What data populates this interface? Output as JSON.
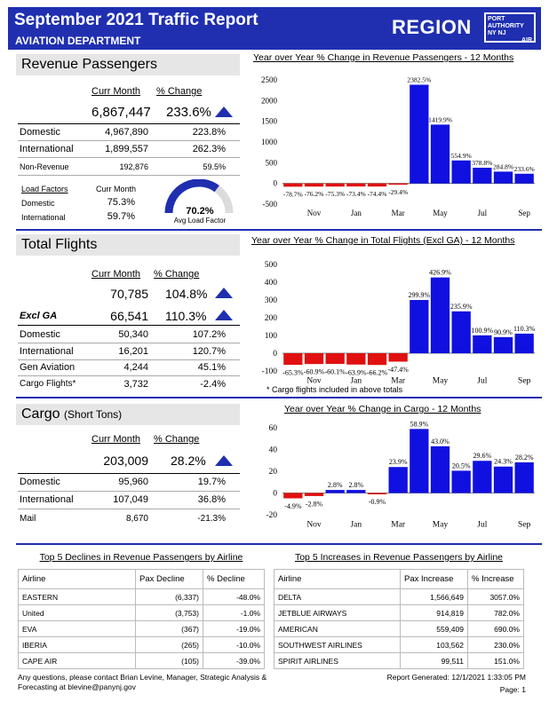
{
  "header": {
    "title": "September 2021 Traffic Report",
    "subtitle": "AVIATION DEPARTMENT",
    "region": "REGION",
    "logo_line1": "PORT",
    "logo_line2": "AUTHORITY",
    "logo_line3": "NY NJ",
    "logo_line4": "AIR"
  },
  "passengers": {
    "title": "Revenue Passengers",
    "col_curr": "Curr Month",
    "col_change": "% Change",
    "total_value": "6,867,447",
    "total_change": "233.6%",
    "rows": [
      {
        "label": "Domestic",
        "value": "4,967,890",
        "change": "223.8%"
      },
      {
        "label": "International",
        "value": "1,899,557",
        "change": "262.3%"
      },
      {
        "label": "Non-Revenue",
        "value": "192,876",
        "change": "59.5%"
      }
    ],
    "lf_title": "Load Factors",
    "lf_col": "Curr Month",
    "lf_rows": [
      {
        "label": "Domestic",
        "value": "75.3%"
      },
      {
        "label": "International",
        "value": "59.7%"
      }
    ],
    "gauge_value": "70.2%",
    "gauge_label": "Avg Load Factor",
    "gauge_fraction": 0.702
  },
  "flights": {
    "title": "Total Flights",
    "col_curr": "Curr Month",
    "col_change": "% Change",
    "total_value": "70,785",
    "total_change": "104.8%",
    "excl_label": "Excl GA",
    "excl_value": "66,541",
    "excl_change": "110.3%",
    "rows": [
      {
        "label": "Domestic",
        "value": "50,340",
        "change": "107.2%"
      },
      {
        "label": "International",
        "value": "16,201",
        "change": "120.7%"
      },
      {
        "label": "Gen Aviation",
        "value": "4,244",
        "change": "45.1%"
      },
      {
        "label": "Cargo Flights*",
        "value": "3,732",
        "change": "-2.4%"
      }
    ],
    "note": "* Cargo flights included in above totals"
  },
  "cargo": {
    "title": "Cargo",
    "title_small": "(Short Tons)",
    "col_curr": "Curr Month",
    "col_change": "% Change",
    "total_value": "203,009",
    "total_change": "28.2%",
    "rows": [
      {
        "label": "Domestic",
        "value": "95,960",
        "change": "19.7%"
      },
      {
        "label": "International",
        "value": "107,049",
        "change": "36.8%"
      },
      {
        "label": "Mail",
        "value": "8,670",
        "change": "-21.3%"
      }
    ]
  },
  "chart_data": [
    {
      "type": "bar",
      "title": "Year over Year % Change in Revenue Passengers - 12 Months",
      "categories": [
        "Oct",
        "Nov",
        "Dec",
        "Jan",
        "Feb",
        "Mar",
        "Apr",
        "May",
        "Jun",
        "Jul",
        "Aug",
        "Sep"
      ],
      "x_tick_labels": [
        "",
        "Nov",
        "",
        "Jan",
        "",
        "Mar",
        "",
        "May",
        "",
        "Jul",
        "",
        "Sep"
      ],
      "values": [
        -78.7,
        -76.2,
        -75.3,
        -73.4,
        -74.4,
        -29.4,
        2382.5,
        1419.9,
        554.9,
        378.8,
        284.8,
        233.6
      ],
      "labels": [
        "-78.7%",
        "-76.2%",
        "-75.3%",
        "-73.4%",
        "-74.4%",
        "-29.4%",
        "2382.5%",
        "1419.9%",
        "554.9%",
        "378.8%",
        "284.8%",
        "233.6%"
      ],
      "ylim": [
        -500,
        2500
      ],
      "yticks": [
        -500,
        0,
        500,
        1000,
        1500,
        2000,
        2500
      ],
      "positive_color": "#1010e0",
      "negative_color": "#e01010"
    },
    {
      "type": "bar",
      "title": "Year over Year % Change in Total Flights (Excl GA) - 12 Months",
      "categories": [
        "Oct",
        "Nov",
        "Dec",
        "Jan",
        "Feb",
        "Mar",
        "Apr",
        "May",
        "Jun",
        "Jul",
        "Aug",
        "Sep"
      ],
      "x_tick_labels": [
        "",
        "Nov",
        "",
        "Jan",
        "",
        "Mar",
        "",
        "May",
        "",
        "Jul",
        "",
        "Sep"
      ],
      "values": [
        -65.3,
        -60.9,
        -60.1,
        -63.9,
        -66.2,
        -47.4,
        299.9,
        426.9,
        235.9,
        100.9,
        90.9,
        110.3
      ],
      "labels": [
        "-65.3%",
        "-60.9%",
        "-60.1%",
        "-63.9%",
        "-66.2%",
        "-47.4%",
        "299.9%",
        "426.9%",
        "235.9%",
        "100.9%",
        "90.9%",
        "110.3%"
      ],
      "ylim": [
        -100,
        500
      ],
      "yticks": [
        -100,
        0,
        100,
        200,
        300,
        400,
        500
      ],
      "positive_color": "#1010e0",
      "negative_color": "#e01010"
    },
    {
      "type": "bar",
      "title": "Year over Year % Change in Cargo - 12 Months",
      "categories": [
        "Oct",
        "Nov",
        "Dec",
        "Jan",
        "Feb",
        "Mar",
        "Apr",
        "May",
        "Jun",
        "Jul",
        "Aug",
        "Sep"
      ],
      "x_tick_labels": [
        "",
        "Nov",
        "",
        "Jan",
        "",
        "Mar",
        "",
        "May",
        "",
        "Jul",
        "",
        "Sep"
      ],
      "values": [
        -4.9,
        -2.8,
        2.8,
        2.8,
        -0.9,
        23.9,
        58.9,
        43.0,
        20.5,
        29.6,
        24.3,
        28.2
      ],
      "labels": [
        "-4.9%",
        "-2.8%",
        "2.8%",
        "2.8%",
        "-0.9%",
        "23.9%",
        "58.9%",
        "43.0%",
        "20.5%",
        "29.6%",
        "24.3%",
        "28.2%"
      ],
      "ylim": [
        -20,
        60
      ],
      "yticks": [
        -20,
        0,
        20,
        40,
        60
      ],
      "positive_color": "#1010e0",
      "negative_color": "#e01010"
    }
  ],
  "declines": {
    "title": "Top 5 Declines in Revenue Passengers by Airline",
    "headers": [
      "Airline",
      "Pax Decline",
      "% Decline"
    ],
    "rows": [
      [
        "EASTERN",
        "(6,337)",
        "-48.0%"
      ],
      [
        "United",
        "(3,753)",
        "-1.0%"
      ],
      [
        "EVA",
        "(367)",
        "-19.0%"
      ],
      [
        "IBERIA",
        "(265)",
        "-10.0%"
      ],
      [
        "CAPE AIR",
        "(105)",
        "-39.0%"
      ]
    ]
  },
  "increases": {
    "title": "Top 5 Increases in Revenue Passengers by Airline",
    "headers": [
      "Airline",
      "Pax Increase",
      "% Increase"
    ],
    "rows": [
      [
        "DELTA",
        "1,566,649",
        "3057.0%"
      ],
      [
        "JETBLUE AIRWAYS",
        "914,819",
        "782.0%"
      ],
      [
        "AMERICAN",
        "559,409",
        "690.0%"
      ],
      [
        "SOUTHWEST AIRLINES",
        "103,562",
        "230.0%"
      ],
      [
        "SPIRIT AIRLINES",
        "99,511",
        "151.0%"
      ]
    ]
  },
  "footer": {
    "contact_line1": "Any questions, please contact Brian Levine, Manager, Strategic Analysis &",
    "contact_line2": "Forecasting at blevine@panynj.gov",
    "generated": "Report Generated: 12/1/2021 1:33:05 PM",
    "page": "Page: 1"
  }
}
